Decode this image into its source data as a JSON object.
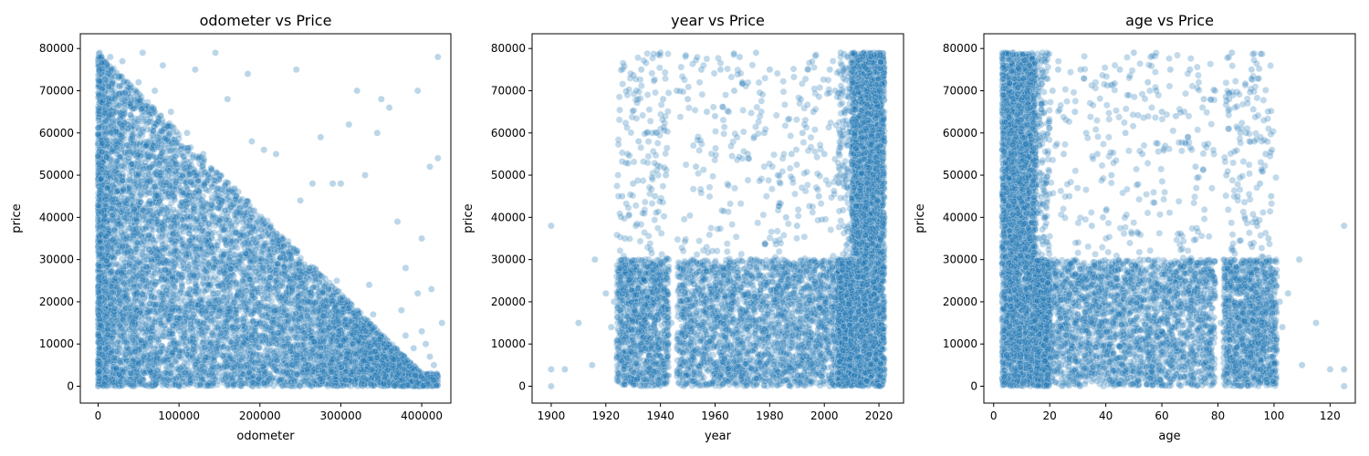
{
  "chart_data": [
    {
      "type": "scatter",
      "title": "odometer vs Price",
      "xlabel": "odometer",
      "ylabel": "price",
      "xlim": [
        -22000,
        436000
      ],
      "ylim": [
        -4000,
        83500
      ],
      "xticks": [
        0,
        100000,
        200000,
        300000,
        400000
      ],
      "xtick_labels": [
        "0",
        "100000",
        "200000",
        "300000",
        "400000"
      ],
      "yticks": [
        0,
        10000,
        20000,
        30000,
        40000,
        50000,
        60000,
        70000,
        80000
      ],
      "ytick_labels": [
        "0",
        "10000",
        "20000",
        "30000",
        "40000",
        "50000",
        "60000",
        "70000",
        "80000"
      ],
      "marker_color": "#1f77b4",
      "marker_alpha": 0.3,
      "points": [
        [
          2000,
          79000
        ],
        [
          15000,
          78000
        ],
        [
          30000,
          77000
        ],
        [
          55000,
          79000
        ],
        [
          80000,
          76000
        ],
        [
          120000,
          75000
        ],
        [
          145000,
          79000
        ],
        [
          160000,
          68000
        ],
        [
          185000,
          74000
        ],
        [
          190000,
          58000
        ],
        [
          205000,
          56000
        ],
        [
          220000,
          55000
        ],
        [
          245000,
          75000
        ],
        [
          250000,
          44000
        ],
        [
          265000,
          48000
        ],
        [
          275000,
          59000
        ],
        [
          290000,
          48000
        ],
        [
          300000,
          48000
        ],
        [
          310000,
          62000
        ],
        [
          320000,
          70000
        ],
        [
          330000,
          50000
        ],
        [
          345000,
          60000
        ],
        [
          350000,
          68000
        ],
        [
          360000,
          66000
        ],
        [
          370000,
          39000
        ],
        [
          380000,
          28000
        ],
        [
          395000,
          70000
        ],
        [
          400000,
          35000
        ],
        [
          410000,
          52000
        ],
        [
          420000,
          54000
        ],
        [
          420000,
          78000
        ],
        [
          425000,
          15000
        ],
        [
          415000,
          5000
        ],
        [
          405000,
          10000
        ],
        [
          395000,
          22000
        ],
        [
          380000,
          12000
        ],
        [
          360000,
          6000
        ],
        [
          340000,
          17000
        ],
        [
          330000,
          8000
        ],
        [
          310000,
          12000
        ],
        [
          290000,
          15000
        ],
        [
          270000,
          20000
        ],
        [
          250000,
          25000
        ],
        [
          230000,
          32000
        ],
        [
          210000,
          36000
        ],
        [
          190000,
          40000
        ],
        [
          170000,
          45000
        ],
        [
          150000,
          50000
        ],
        [
          130000,
          55000
        ],
        [
          110000,
          60000
        ],
        [
          90000,
          65000
        ],
        [
          70000,
          70000
        ],
        [
          50000,
          72000
        ],
        [
          20000,
          65000
        ],
        [
          10000,
          50000
        ],
        [
          5000,
          30000
        ],
        [
          0,
          0
        ],
        [
          40000,
          40000
        ],
        [
          60000,
          35000
        ],
        [
          100000,
          30000
        ],
        [
          140000,
          20000
        ],
        [
          180000,
          15000
        ],
        [
          220000,
          10000
        ],
        [
          260000,
          5000
        ],
        [
          300000,
          3000
        ],
        [
          340000,
          2000
        ],
        [
          380000,
          1500
        ],
        [
          420000,
          2000
        ],
        [
          1000,
          2000
        ],
        [
          8000,
          8000
        ],
        [
          25000,
          20000
        ],
        [
          45000,
          55000
        ],
        [
          75000,
          45000
        ],
        [
          95000,
          25000
        ],
        [
          115000,
          40000
        ],
        [
          135000,
          35000
        ],
        [
          155000,
          28000
        ],
        [
          175000,
          22000
        ],
        [
          195000,
          18000
        ],
        [
          215000,
          14000
        ],
        [
          235000,
          20000
        ],
        [
          255000,
          12000
        ],
        [
          275000,
          8000
        ],
        [
          295000,
          25000
        ],
        [
          315000,
          4000
        ],
        [
          335000,
          24000
        ],
        [
          355000,
          3000
        ],
        [
          375000,
          18000
        ],
        [
          390000,
          9000
        ],
        [
          400000,
          13000
        ],
        [
          410000,
          7000
        ],
        [
          412000,
          23000
        ]
      ]
    },
    {
      "type": "scatter",
      "title": "year vs Price",
      "xlabel": "year",
      "ylabel": "price",
      "xlim": [
        1893,
        2029
      ],
      "ylim": [
        -4000,
        83500
      ],
      "xticks": [
        1900,
        1920,
        1940,
        1960,
        1980,
        2000,
        2020
      ],
      "xtick_labels": [
        "1900",
        "1920",
        "1940",
        "1960",
        "1980",
        "2000",
        "2020"
      ],
      "yticks": [
        0,
        10000,
        20000,
        30000,
        40000,
        50000,
        60000,
        70000,
        80000
      ],
      "ytick_labels": [
        "0",
        "10000",
        "20000",
        "30000",
        "40000",
        "50000",
        "60000",
        "70000",
        "80000"
      ],
      "marker_color": "#1f77b4",
      "marker_alpha": 0.3,
      "points": [
        [
          1900,
          38000
        ],
        [
          1900,
          4000
        ],
        [
          1900,
          0
        ],
        [
          1905,
          4000
        ],
        [
          1910,
          15000
        ],
        [
          1915,
          5000
        ],
        [
          1916,
          30000
        ],
        [
          1920,
          22000
        ],
        [
          1922,
          14000
        ],
        [
          1924,
          26000
        ],
        [
          1926,
          45000
        ],
        [
          1928,
          55000
        ],
        [
          1930,
          48000
        ],
        [
          1932,
          58000
        ],
        [
          1933,
          75000
        ],
        [
          1935,
          60000
        ],
        [
          1937,
          60000
        ],
        [
          1938,
          45000
        ],
        [
          1940,
          79000
        ],
        [
          1941,
          68000
        ],
        [
          1942,
          50000
        ],
        [
          1943,
          30000
        ],
        [
          1946,
          70000
        ],
        [
          1950,
          68000
        ],
        [
          1953,
          52000
        ],
        [
          1955,
          75000
        ],
        [
          1957,
          65000
        ],
        [
          1960,
          64000
        ],
        [
          1962,
          75000
        ],
        [
          1965,
          65000
        ],
        [
          1967,
          70000
        ],
        [
          1969,
          78000
        ],
        [
          1970,
          72000
        ],
        [
          1972,
          55000
        ],
        [
          1975,
          79000
        ],
        [
          1978,
          60000
        ],
        [
          1980,
          75000
        ],
        [
          1983,
          50000
        ],
        [
          1986,
          40000
        ],
        [
          1988,
          55000
        ],
        [
          1990,
          38000
        ],
        [
          1992,
          60000
        ],
        [
          1994,
          75000
        ],
        [
          1996,
          65000
        ],
        [
          1998,
          45000
        ],
        [
          2000,
          55000
        ],
        [
          2002,
          75000
        ],
        [
          2004,
          70000
        ],
        [
          2006,
          79000
        ],
        [
          2008,
          62000
        ],
        [
          2010,
          65000
        ],
        [
          2012,
          70000
        ],
        [
          2014,
          78000
        ],
        [
          2016,
          75000
        ],
        [
          2018,
          79000
        ],
        [
          2020,
          79000
        ],
        [
          2021,
          60000
        ],
        [
          2022,
          40000
        ],
        [
          2022,
          20000
        ],
        [
          2021,
          5000
        ],
        [
          2019,
          30000
        ],
        [
          2017,
          50000
        ],
        [
          2015,
          45000
        ],
        [
          2013,
          35000
        ],
        [
          2011,
          25000
        ],
        [
          2009,
          15000
        ],
        [
          2007,
          10000
        ],
        [
          2005,
          5000
        ],
        [
          2003,
          28000
        ],
        [
          2001,
          18000
        ],
        [
          1999,
          12000
        ],
        [
          1997,
          8000
        ],
        [
          1995,
          26000
        ],
        [
          1993,
          16000
        ],
        [
          1991,
          6000
        ],
        [
          1989,
          22000
        ],
        [
          1987,
          14000
        ],
        [
          1985,
          3000
        ],
        [
          1982,
          28000
        ],
        [
          1979,
          12000
        ],
        [
          1976,
          20000
        ],
        [
          1973,
          30000
        ],
        [
          1968,
          28000
        ],
        [
          1964,
          18000
        ],
        [
          1958,
          10000
        ],
        [
          1952,
          25000
        ],
        [
          1948,
          5000
        ],
        [
          1944,
          15000
        ],
        [
          1939,
          20000
        ],
        [
          1934,
          10000
        ],
        [
          1929,
          3000
        ],
        [
          1925,
          1000
        ],
        [
          1923,
          20000
        ],
        [
          1927,
          35000
        ],
        [
          1931,
          38000
        ],
        [
          1936,
          25000
        ]
      ]
    },
    {
      "type": "scatter",
      "title": "age vs Price",
      "xlabel": "age",
      "ylabel": "price",
      "xlim": [
        -3.5,
        129
      ],
      "ylim": [
        -4000,
        83500
      ],
      "xticks": [
        0,
        20,
        40,
        60,
        80,
        100,
        120
      ],
      "xtick_labels": [
        "0",
        "20",
        "40",
        "60",
        "80",
        "100",
        "120"
      ],
      "yticks": [
        0,
        10000,
        20000,
        30000,
        40000,
        50000,
        60000,
        70000,
        80000
      ],
      "ytick_labels": [
        "0",
        "10000",
        "20000",
        "30000",
        "40000",
        "50000",
        "60000",
        "70000",
        "80000"
      ],
      "marker_color": "#1f77b4",
      "marker_alpha": 0.3,
      "points": [
        [
          125,
          38000
        ],
        [
          125,
          4000
        ],
        [
          125,
          0
        ],
        [
          120,
          4000
        ],
        [
          115,
          15000
        ],
        [
          110,
          5000
        ],
        [
          109,
          30000
        ],
        [
          105,
          22000
        ],
        [
          103,
          14000
        ],
        [
          101,
          26000
        ],
        [
          99,
          45000
        ],
        [
          97,
          55000
        ],
        [
          95,
          48000
        ],
        [
          93,
          58000
        ],
        [
          92,
          75000
        ],
        [
          90,
          60000
        ],
        [
          88,
          60000
        ],
        [
          87,
          45000
        ],
        [
          85,
          79000
        ],
        [
          84,
          68000
        ],
        [
          83,
          50000
        ],
        [
          82,
          30000
        ],
        [
          79,
          70000
        ],
        [
          75,
          68000
        ],
        [
          72,
          52000
        ],
        [
          70,
          75000
        ],
        [
          68,
          65000
        ],
        [
          65,
          64000
        ],
        [
          63,
          75000
        ],
        [
          60,
          65000
        ],
        [
          58,
          70000
        ],
        [
          56,
          78000
        ],
        [
          55,
          72000
        ],
        [
          53,
          55000
        ],
        [
          50,
          79000
        ],
        [
          47,
          60000
        ],
        [
          45,
          75000
        ],
        [
          42,
          50000
        ],
        [
          39,
          40000
        ],
        [
          37,
          55000
        ],
        [
          35,
          38000
        ],
        [
          33,
          60000
        ],
        [
          31,
          75000
        ],
        [
          29,
          65000
        ],
        [
          27,
          45000
        ],
        [
          25,
          55000
        ],
        [
          23,
          75000
        ],
        [
          21,
          70000
        ],
        [
          19,
          79000
        ],
        [
          17,
          62000
        ],
        [
          15,
          65000
        ],
        [
          13,
          70000
        ],
        [
          11,
          78000
        ],
        [
          9,
          75000
        ],
        [
          7,
          79000
        ],
        [
          5,
          79000
        ],
        [
          4,
          60000
        ],
        [
          3,
          40000
        ],
        [
          3,
          20000
        ],
        [
          4,
          5000
        ],
        [
          6,
          30000
        ],
        [
          8,
          50000
        ],
        [
          10,
          45000
        ],
        [
          12,
          35000
        ],
        [
          14,
          25000
        ],
        [
          16,
          15000
        ],
        [
          18,
          10000
        ],
        [
          20,
          5000
        ],
        [
          22,
          28000
        ],
        [
          24,
          18000
        ],
        [
          26,
          12000
        ],
        [
          28,
          8000
        ],
        [
          30,
          26000
        ],
        [
          32,
          16000
        ],
        [
          34,
          6000
        ],
        [
          36,
          22000
        ],
        [
          38,
          14000
        ],
        [
          40,
          3000
        ],
        [
          43,
          28000
        ],
        [
          46,
          12000
        ],
        [
          49,
          20000
        ],
        [
          52,
          30000
        ],
        [
          57,
          28000
        ],
        [
          61,
          18000
        ],
        [
          67,
          10000
        ],
        [
          73,
          25000
        ],
        [
          77,
          5000
        ],
        [
          81,
          15000
        ],
        [
          86,
          20000
        ],
        [
          91,
          10000
        ],
        [
          96,
          3000
        ],
        [
          100,
          1000
        ],
        [
          102,
          20000
        ],
        [
          98,
          35000
        ],
        [
          94,
          38000
        ],
        [
          89,
          25000
        ]
      ]
    }
  ]
}
